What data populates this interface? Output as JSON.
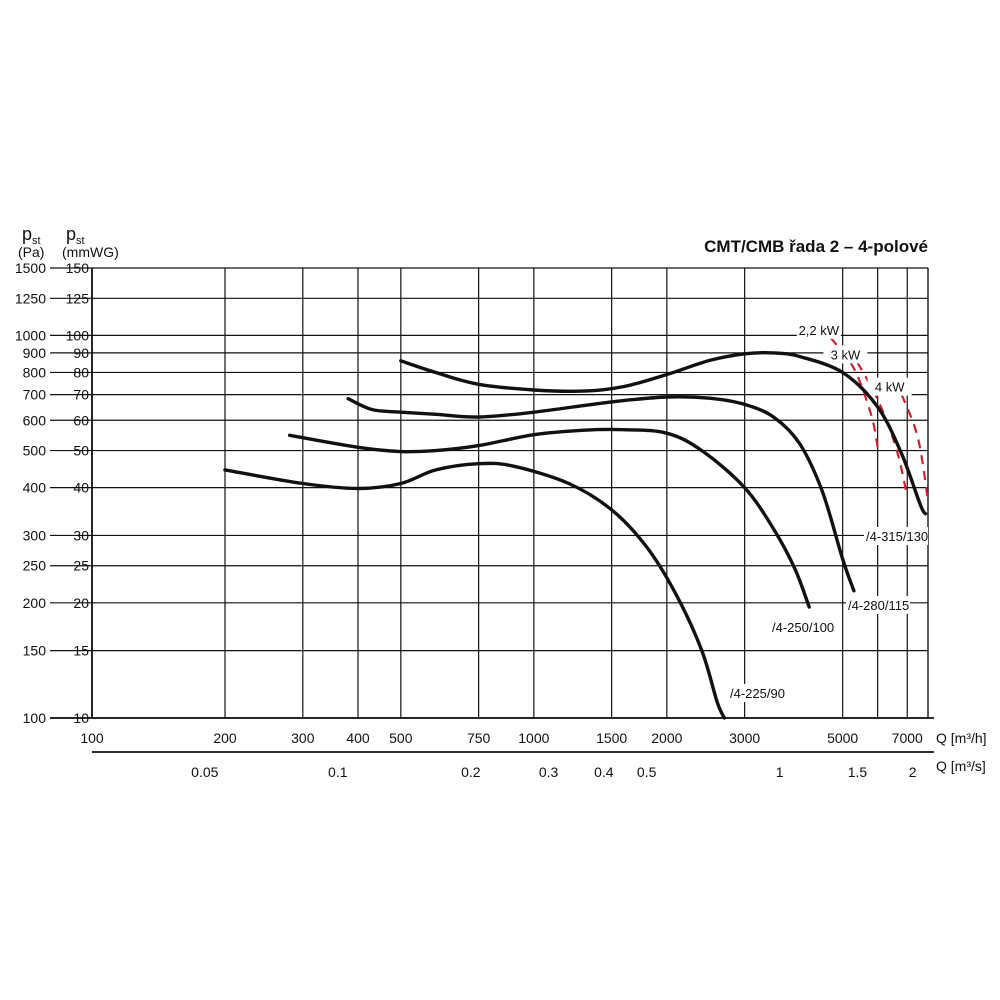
{
  "chart_data": {
    "type": "line",
    "title": "CMT/CMB řada 2 – 4-polové",
    "y_axis_pa": {
      "label": "p",
      "label_sub": "st",
      "unit": "(Pa)",
      "scale": "log",
      "range": [
        100,
        1500
      ],
      "ticks": [
        {
          "value": 100,
          "label": "100"
        },
        {
          "value": 150,
          "label": "150"
        },
        {
          "value": 200,
          "label": "200"
        },
        {
          "value": 250,
          "label": "250"
        },
        {
          "value": 300,
          "label": "300"
        },
        {
          "value": 400,
          "label": "400"
        },
        {
          "value": 500,
          "label": "500"
        },
        {
          "value": 600,
          "label": "600"
        },
        {
          "value": 700,
          "label": "700"
        },
        {
          "value": 800,
          "label": "800"
        },
        {
          "value": 900,
          "label": "900"
        },
        {
          "value": 1000,
          "label": "1000"
        },
        {
          "value": 1250,
          "label": "1250"
        },
        {
          "value": 1500,
          "label": "1500"
        }
      ]
    },
    "y_axis_mmwg": {
      "label": "p",
      "label_sub": "st",
      "unit": "(mmWG)",
      "scale": "log",
      "range": [
        10,
        150
      ],
      "ticks": [
        {
          "value": 10,
          "label": "10"
        },
        {
          "value": 15,
          "label": "15"
        },
        {
          "value": 20,
          "label": "20"
        },
        {
          "value": 25,
          "label": "25"
        },
        {
          "value": 30,
          "label": "30"
        },
        {
          "value": 40,
          "label": "40"
        },
        {
          "value": 50,
          "label": "50"
        },
        {
          "value": 60,
          "label": "60"
        },
        {
          "value": 70,
          "label": "70"
        },
        {
          "value": 80,
          "label": "80"
        },
        {
          "value": 90,
          "label": "90"
        },
        {
          "value": 100,
          "label": "100"
        },
        {
          "value": 125,
          "label": "125"
        },
        {
          "value": 150,
          "label": "150"
        }
      ]
    },
    "x_axis_m3h": {
      "label": "Q [m³/h]",
      "scale": "log",
      "range": [
        100,
        7800
      ],
      "ticks": [
        {
          "value": 100,
          "label": "100"
        },
        {
          "value": 200,
          "label": "200"
        },
        {
          "value": 300,
          "label": "300"
        },
        {
          "value": 400,
          "label": "400"
        },
        {
          "value": 500,
          "label": "500"
        },
        {
          "value": 750,
          "label": "750"
        },
        {
          "value": 1000,
          "label": "1000"
        },
        {
          "value": 1500,
          "label": "1500"
        },
        {
          "value": 2000,
          "label": "2000"
        },
        {
          "value": 3000,
          "label": "3000"
        },
        {
          "value": 5000,
          "label": "5000"
        },
        {
          "value": 7000,
          "label": "7000"
        }
      ],
      "grid_lines": [
        200,
        300,
        400,
        500,
        750,
        1000,
        1500,
        2000,
        3000,
        5000,
        6000,
        7000
      ]
    },
    "x_axis_m3s": {
      "label": "Q [m³/s]",
      "ticks": [
        {
          "value": 0.05,
          "label": "0.05"
        },
        {
          "value": 0.1,
          "label": "0.1"
        },
        {
          "value": 0.2,
          "label": "0.2"
        },
        {
          "value": 0.3,
          "label": "0.3"
        },
        {
          "value": 0.4,
          "label": "0.4"
        },
        {
          "value": 0.5,
          "label": "0.5"
        },
        {
          "value": 1,
          "label": "1"
        },
        {
          "value": 1.5,
          "label": "1.5"
        },
        {
          "value": 2,
          "label": "2"
        }
      ]
    },
    "grid": true,
    "series": [
      {
        "name": "/4-225/90",
        "points": [
          [
            200,
            445
          ],
          [
            300,
            410
          ],
          [
            400,
            398
          ],
          [
            500,
            410
          ],
          [
            600,
            445
          ],
          [
            750,
            462
          ],
          [
            900,
            455
          ],
          [
            1200,
            410
          ],
          [
            1500,
            350
          ],
          [
            1800,
            280
          ],
          [
            2100,
            210
          ],
          [
            2400,
            150
          ],
          [
            2600,
            110
          ],
          [
            2700,
            100
          ]
        ]
      },
      {
        "name": "/4-250/100",
        "points": [
          [
            280,
            548
          ],
          [
            400,
            510
          ],
          [
            500,
            497
          ],
          [
            600,
            500
          ],
          [
            750,
            515
          ],
          [
            1000,
            550
          ],
          [
            1300,
            565
          ],
          [
            1600,
            567
          ],
          [
            2000,
            555
          ],
          [
            2400,
            500
          ],
          [
            3000,
            400
          ],
          [
            3500,
            310
          ],
          [
            3900,
            245
          ],
          [
            4200,
            195
          ]
        ]
      },
      {
        "name": "/4-280/115",
        "points": [
          [
            380,
            683
          ],
          [
            430,
            640
          ],
          [
            500,
            630
          ],
          [
            600,
            622
          ],
          [
            750,
            612
          ],
          [
            1000,
            630
          ],
          [
            1500,
            670
          ],
          [
            2000,
            690
          ],
          [
            2500,
            685
          ],
          [
            3000,
            660
          ],
          [
            3500,
            610
          ],
          [
            4000,
            520
          ],
          [
            4500,
            390
          ],
          [
            5000,
            260
          ],
          [
            5300,
            215
          ]
        ]
      },
      {
        "name": "/4-315/130",
        "points": [
          [
            500,
            858
          ],
          [
            600,
            800
          ],
          [
            750,
            745
          ],
          [
            1000,
            720
          ],
          [
            1300,
            715
          ],
          [
            1600,
            735
          ],
          [
            2000,
            790
          ],
          [
            2500,
            860
          ],
          [
            3000,
            895
          ],
          [
            3500,
            900
          ],
          [
            4000,
            880
          ],
          [
            5000,
            800
          ],
          [
            6000,
            650
          ],
          [
            6800,
            490
          ],
          [
            7500,
            360
          ],
          [
            7700,
            342
          ]
        ]
      }
    ],
    "power_lines": [
      {
        "name": "2,2 kW",
        "points": [
          [
            4700,
            985
          ],
          [
            5300,
            820
          ],
          [
            5800,
            620
          ],
          [
            6000,
            510
          ]
        ]
      },
      {
        "name": "3 kW",
        "points": [
          [
            5400,
            850
          ],
          [
            6000,
            680
          ],
          [
            6600,
            510
          ],
          [
            7000,
            380
          ]
        ]
      },
      {
        "name": "4 kW",
        "points": [
          [
            6800,
            700
          ],
          [
            7400,
            540
          ],
          [
            7800,
            370
          ]
        ]
      }
    ]
  },
  "colors": {
    "curve": "#111111",
    "grid": "#111111",
    "power_line": "#d0202e"
  }
}
